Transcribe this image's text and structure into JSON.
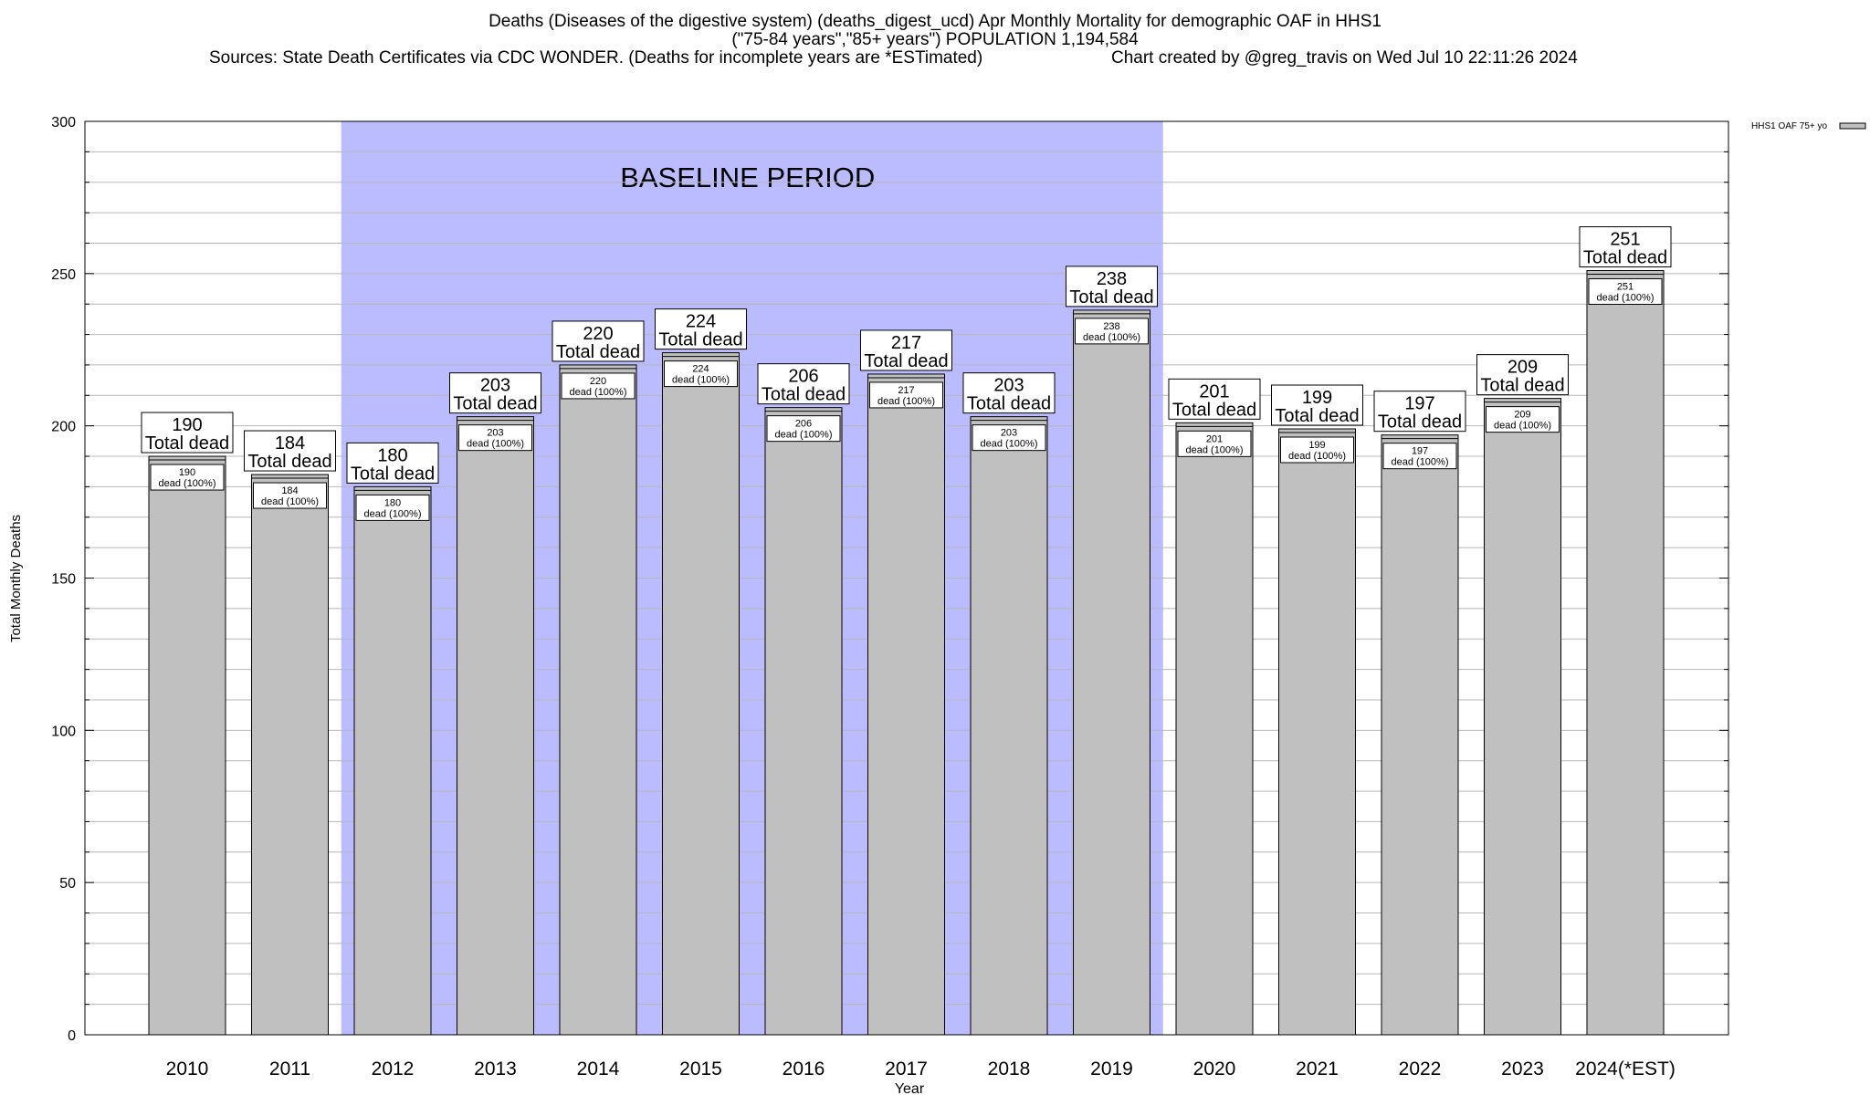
{
  "header": {
    "title_line1": "Deaths (Diseases of the digestive system) (deaths_digest_ucd) Apr Monthly Mortality for demographic OAF in HHS1",
    "title_line2": "(\"75-84 years\",\"85+ years\") POPULATION 1,194,584",
    "sources": "Sources: State Death Certificates via CDC WONDER. (Deaths for incomplete years are *ESTimated)",
    "credit": "Chart created by @greg_travis on Wed Jul 10 22:11:26 2024"
  },
  "chart_data": {
    "type": "bar",
    "xlabel": "Year",
    "ylabel": "Total Monthly Deaths",
    "ylim": [
      0,
      300
    ],
    "yticks": [
      0,
      50,
      100,
      150,
      200,
      250,
      300
    ],
    "grid": true,
    "legend_position": "top-right",
    "categories": [
      "2010",
      "2011",
      "2012",
      "2013",
      "2014",
      "2015",
      "2016",
      "2017",
      "2018",
      "2019",
      "2020",
      "2021",
      "2022",
      "2023",
      "2024(*EST)"
    ],
    "series": [
      {
        "name": "HHS1 OAF 75+ yo",
        "values": [
          190,
          184,
          180,
          203,
          220,
          224,
          206,
          217,
          203,
          238,
          201,
          199,
          197,
          209,
          251
        ],
        "color": "#c0c0c0"
      }
    ],
    "total_label": "Total dead",
    "inner_label": "dead (100%)",
    "baseline": {
      "label": "BASELINE PERIOD",
      "from": "2012",
      "to": "2019",
      "color": "#bbbbff"
    }
  }
}
